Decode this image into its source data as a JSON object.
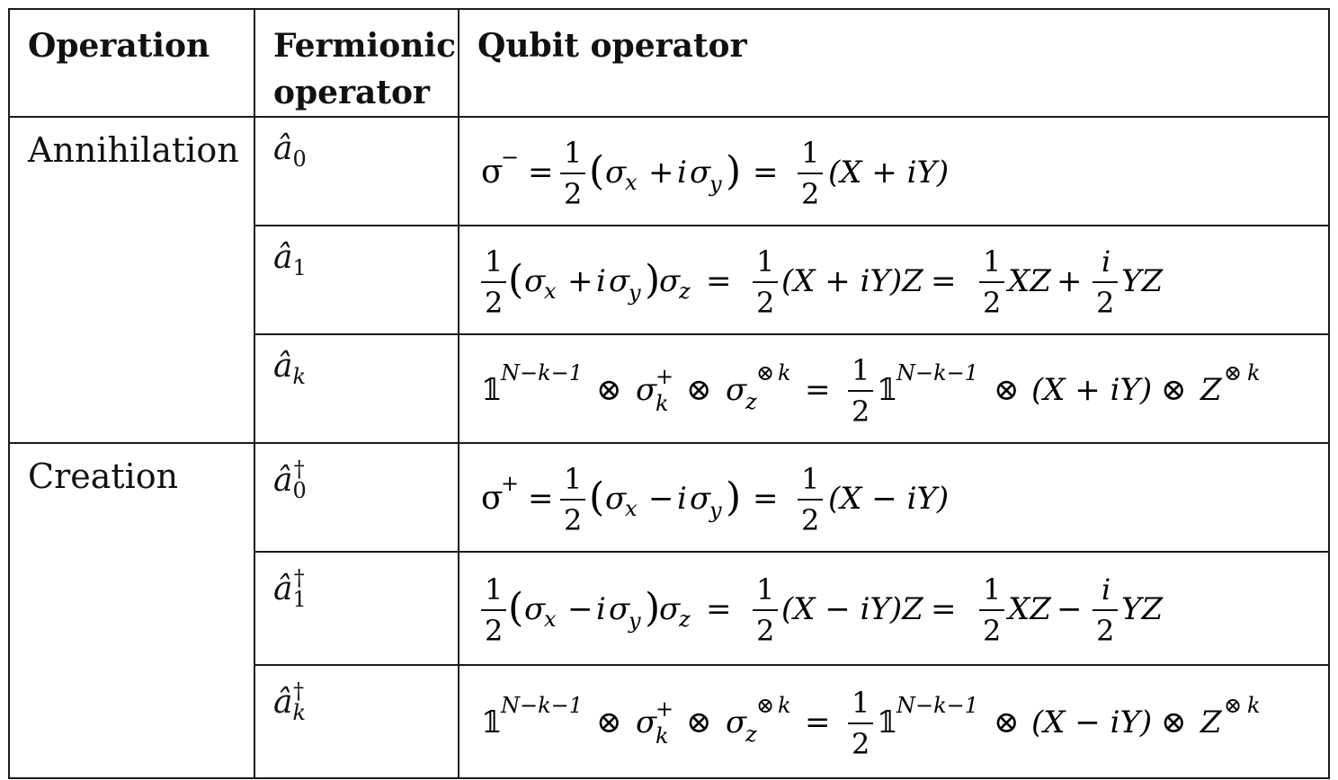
{
  "headers": {
    "operation": "Operation",
    "fermionic_line1": "Fermionic",
    "fermionic_line2": "operator",
    "qubit": "Qubit operator"
  },
  "groups": [
    {
      "label": "Annihilation"
    },
    {
      "label": "Creation"
    }
  ],
  "rows": [
    {
      "fermionic": "â",
      "fermionic_index": "0",
      "fermionic_dagger": "",
      "qubit": "σ⁻ = ½(σₓ + iσᵧ) = ½(X + iY)"
    },
    {
      "fermionic": "â",
      "fermionic_index": "1",
      "fermionic_dagger": "",
      "qubit": "½(σₓ + iσᵧ)σ_z = ½(X + iY)Z = ½XZ + (i/2)YZ"
    },
    {
      "fermionic": "â",
      "fermionic_index": "k",
      "fermionic_dagger": "",
      "qubit": "𝟙^(N−k−1) ⊗ σₖ⁺ ⊗ σ_z^(⊗k) = ½ 𝟙^(N−k−1) ⊗ (X + iY) ⊗ Z^(⊗k)"
    },
    {
      "fermionic": "â",
      "fermionic_index": "0",
      "fermionic_dagger": "†",
      "qubit": "σ⁺ = ½(σₓ − iσᵧ) = ½(X − iY)"
    },
    {
      "fermionic": "â",
      "fermionic_index": "1",
      "fermionic_dagger": "†",
      "qubit": "½(σₓ − iσᵧ)σ_z = ½(X − iY)Z = ½XZ − (i/2)YZ"
    },
    {
      "fermionic": "â",
      "fermionic_index": "k",
      "fermionic_dagger": "†",
      "qubit": "𝟙^(N−k−1) ⊗ σₖ⁺ ⊗ σ_z^(⊗k) = ½ 𝟙^(N−k−1) ⊗ (X − iY) ⊗ Z^(⊗k)"
    }
  ]
}
